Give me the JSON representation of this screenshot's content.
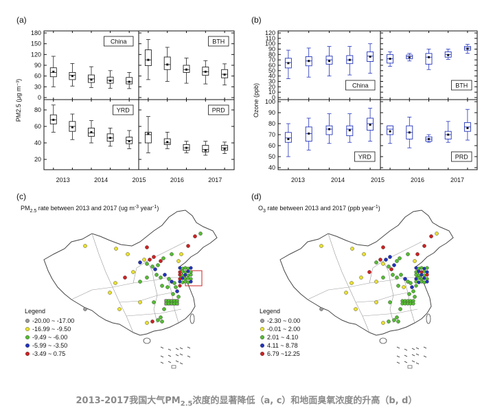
{
  "caption": {
    "pre": "2013-2017我国大气PM",
    "sub": "2.5",
    "post": "浓度的显著降低（a, c）和地面臭氧浓度的升高（b, d）"
  },
  "chart_data": [
    {
      "type": "box",
      "panel_label": "(a)",
      "ylabel": "PM2.5 (μg m⁻³)",
      "years": [
        "2013",
        "2014",
        "2015",
        "2016",
        "2017"
      ],
      "upper": {
        "ylim": [
          0,
          180
        ],
        "ticks": [
          0,
          30,
          60,
          90,
          120,
          150,
          180
        ]
      },
      "lower": {
        "ylim": [
          10,
          90
        ],
        "ticks": [
          20,
          40,
          60,
          80
        ]
      },
      "subplots": [
        {
          "name": "China",
          "row": 0,
          "col": 0,
          "color": "#222222",
          "boxes": [
            [
              30,
              58,
              70,
              83,
              115,
              72
            ],
            [
              32,
              50,
              62,
              70,
              95,
              60
            ],
            [
              28,
              42,
              52,
              63,
              86,
              50
            ],
            [
              26,
              40,
              48,
              57,
              75,
              47
            ],
            [
              25,
              38,
              44,
              56,
              70,
              44
            ]
          ]
        },
        {
          "name": "BTH",
          "row": 0,
          "col": 1,
          "color": "#222222",
          "boxes": [
            [
              50,
              89,
              105,
              133,
              162,
              105
            ],
            [
              45,
              78,
              92,
              113,
              140,
              92
            ],
            [
              40,
              70,
              78,
              90,
              110,
              78
            ],
            [
              38,
              62,
              72,
              85,
              103,
              72
            ],
            [
              35,
              55,
              65,
              78,
              94,
              64
            ]
          ]
        },
        {
          "name": "YRD",
          "row": 1,
          "col": 0,
          "color": "#222222",
          "boxes": [
            [
              53,
              63,
              68,
              74,
              86,
              68
            ],
            [
              44,
              54,
              60,
              66,
              75,
              59
            ],
            [
              40,
              48,
              52,
              58,
              67,
              53
            ],
            [
              36,
              42,
              46,
              51,
              58,
              46
            ],
            [
              33,
              39,
              43,
              47,
              55,
              42
            ]
          ]
        },
        {
          "name": "PRD",
          "row": 1,
          "col": 1,
          "color": "#222222",
          "boxes": [
            [
              28,
              40,
              50,
              53,
              72,
              51
            ],
            [
              33,
              38,
              40,
              45,
              53,
              41
            ],
            [
              28,
              31,
              34,
              38,
              42,
              34
            ],
            [
              25,
              29,
              32,
              37,
              42,
              31
            ],
            [
              27,
              31,
              34,
              37,
              41,
              33
            ]
          ]
        }
      ]
    },
    {
      "type": "box",
      "panel_label": "(b)",
      "ylabel": "Ozone (ppb)",
      "years": [
        "2013",
        "2014",
        "2015",
        "2016",
        "2017"
      ],
      "upper": {
        "ylim": [
          0,
          120
        ],
        "ticks": [
          0,
          10,
          20,
          30,
          40,
          50,
          60,
          70,
          80,
          90,
          100,
          110,
          120
        ]
      },
      "lower": {
        "ylim": [
          40,
          100
        ],
        "ticks": [
          40,
          50,
          60,
          70,
          80,
          90,
          100
        ]
      },
      "subplots": [
        {
          "name": "China",
          "row": 0,
          "col": 0,
          "color": "#2233bb",
          "boxes": [
            [
              35,
              55,
              65,
              73,
              88,
              64
            ],
            [
              38,
              59,
              68,
              76,
              92,
              68
            ],
            [
              40,
              62,
              70,
              77,
              95,
              68
            ],
            [
              42,
              63,
              70,
              78,
              95,
              70
            ],
            [
              45,
              67,
              77,
              85,
              100,
              76
            ]
          ]
        },
        {
          "name": "BTH",
          "row": 0,
          "col": 1,
          "color": "#2233bb",
          "boxes": [
            [
              58,
              64,
              72,
              80,
              85,
              72
            ],
            [
              68,
              72,
              76,
              79,
              82,
              75
            ],
            [
              52,
              62,
              75,
              82,
              90,
              75
            ],
            [
              71,
              75,
              80,
              85,
              90,
              79
            ],
            [
              82,
              88,
              92,
              95,
              99,
              91
            ]
          ]
        },
        {
          "name": "YRD",
          "row": 1,
          "col": 0,
          "color": "#2233bb",
          "boxes": [
            [
              50,
              63,
              67,
              72,
              80,
              66
            ],
            [
              56,
              64,
              71,
              77,
              85,
              71
            ],
            [
              62,
              70,
              75,
              78,
              89,
              75
            ],
            [
              63,
              69,
              75,
              78,
              89,
              74
            ],
            [
              64,
              74,
              80,
              85,
              94,
              79
            ]
          ]
        },
        {
          "name": "PRD",
          "row": 1,
          "col": 1,
          "color": "#2233bb",
          "boxes": [
            [
              62,
              70,
              75,
              78,
              78,
              73
            ],
            [
              58,
              66,
              72,
              78,
              86,
              72
            ],
            [
              63,
              64,
              66,
              68,
              70,
              66
            ],
            [
              63,
              66,
              70,
              73,
              82,
              70
            ],
            [
              65,
              73,
              77,
              81,
              93,
              76
            ]
          ]
        }
      ]
    },
    {
      "type": "map",
      "panel_label": "(c)",
      "title_pre": "PM",
      "title_sub": "2.5",
      "title_post": " rate between 2013 and 2017 (ug m",
      "title_sup1": "-3",
      "title_mid": " year",
      "title_sup2": "-1",
      "title_end": ")",
      "legend_title": "Legend",
      "legend": [
        {
          "label": "-20.00 ~ -17.00",
          "color": "#999999"
        },
        {
          "label": "-16.99 ~ -9.50",
          "color": "#e8e030"
        },
        {
          "label": "-9.49 ~ -6.00",
          "color": "#55bb33"
        },
        {
          "label": "-5.99 ~ -3.50",
          "color": "#2233bb"
        },
        {
          "label": "-3.49 ~ 0.75",
          "color": "#cc2222"
        }
      ]
    },
    {
      "type": "map",
      "panel_label": "(d)",
      "title_pre": "O",
      "title_sub": "3",
      "title_post": " rate between 2013 and 2017 (ppb year",
      "title_sup1": "-1",
      "title_mid": "",
      "title_sup2": "",
      "title_end": ")",
      "legend_title": "Legend",
      "legend": [
        {
          "label": "-2.30 ~ 0.00",
          "color": "#999999"
        },
        {
          "label": "-0.01 ~ 2.00",
          "color": "#e8e030"
        },
        {
          "label": "2.01 ~ 4.10",
          "color": "#55bb33"
        },
        {
          "label": "4.11 ~ 8.78",
          "color": "#2233bb"
        },
        {
          "label": "6.79 ~12.25",
          "color": "#cc2222"
        }
      ]
    }
  ]
}
